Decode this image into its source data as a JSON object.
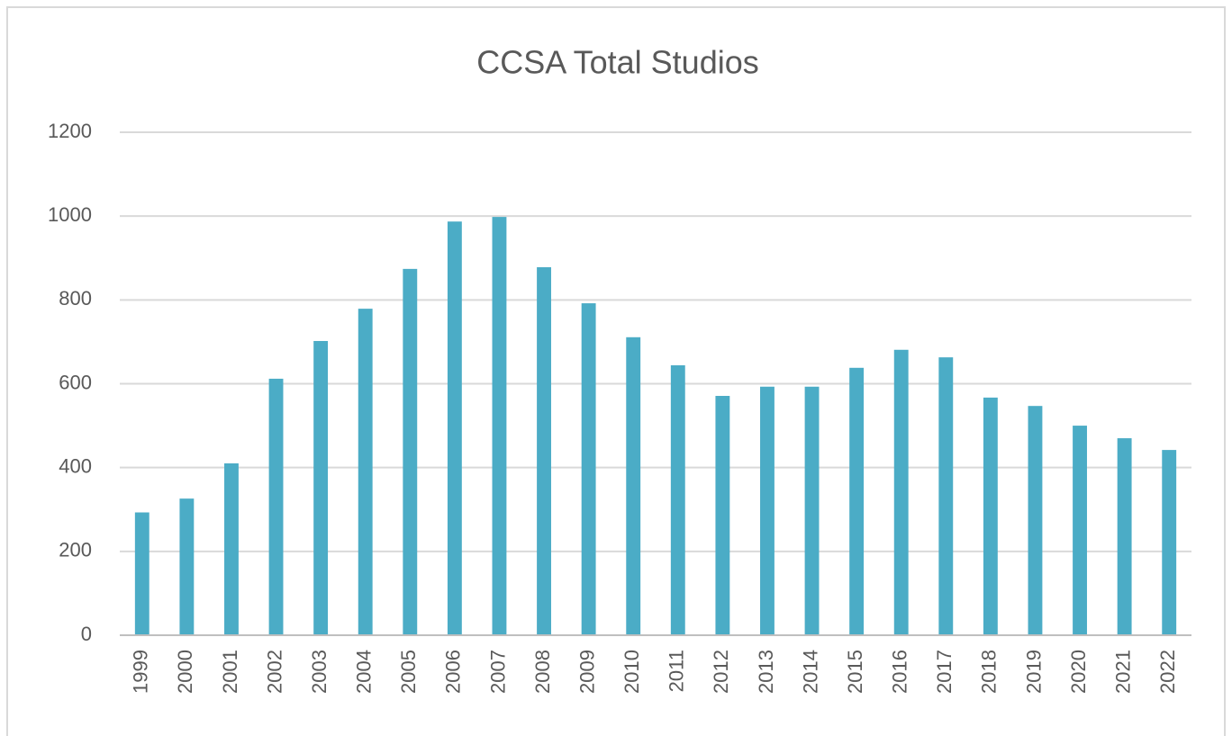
{
  "chart_data": {
    "type": "bar",
    "title": "CCSA Total Studios",
    "categories": [
      "1999",
      "2000",
      "2001",
      "2002",
      "2003",
      "2004",
      "2005",
      "2006",
      "2007",
      "2008",
      "2009",
      "2010",
      "2011",
      "2012",
      "2013",
      "2014",
      "2015",
      "2016",
      "2017",
      "2018",
      "2019",
      "2020",
      "2021",
      "2022"
    ],
    "values": [
      293,
      326,
      410,
      612,
      702,
      779,
      874,
      987,
      998,
      878,
      792,
      711,
      644,
      571,
      593,
      593,
      638,
      681,
      663,
      567,
      547,
      500,
      470,
      442
    ],
    "color": "#4bacc6",
    "ylim": [
      0,
      1200
    ],
    "yticks": [
      0,
      200,
      400,
      600,
      800,
      1000,
      1200
    ],
    "grid": true
  }
}
